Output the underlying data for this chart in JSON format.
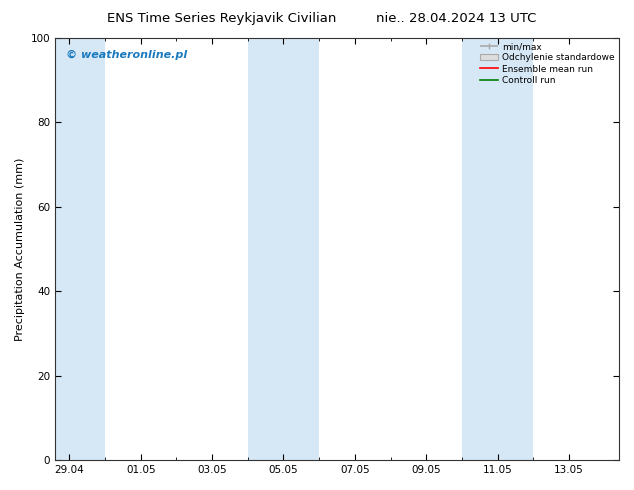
{
  "title_left": "ENS Time Series Reykjavik Civilian",
  "title_right": "nie.. 28.04.2024 13 UTC",
  "ylabel": "Precipitation Accumulation (mm)",
  "watermark": "© weatheronline.pl",
  "ylim": [
    0,
    100
  ],
  "yticks": [
    0,
    20,
    40,
    60,
    80,
    100
  ],
  "xtick_labels": [
    "29.04",
    "01.05",
    "03.05",
    "05.05",
    "07.05",
    "09.05",
    "11.05",
    "13.05"
  ],
  "legend_labels": [
    "min/max",
    "Odchylenie standardowe",
    "Ensemble mean run",
    "Controll run"
  ],
  "background_color": "#ffffff",
  "band_color": "#d6e8f5",
  "title_fontsize": 9.5,
  "axis_fontsize": 7.5,
  "watermark_color": "#1a7abf",
  "watermark_fontsize": 8,
  "legend_fontsize": 6.5,
  "ylabel_fontsize": 8,
  "minmax_color": "#aaaaaa",
  "std_facecolor": "#dddddd",
  "std_edgecolor": "#aaaaaa",
  "ens_color": "#ff0000",
  "ctrl_color": "#008000",
  "band_ranges": [
    [
      -0.4,
      1.0
    ],
    [
      5.0,
      7.0
    ],
    [
      11.0,
      13.0
    ]
  ],
  "xlim": [
    -0.4,
    15.4
  ],
  "xtick_positions": [
    0,
    2,
    4,
    6,
    8,
    10,
    12,
    14
  ]
}
